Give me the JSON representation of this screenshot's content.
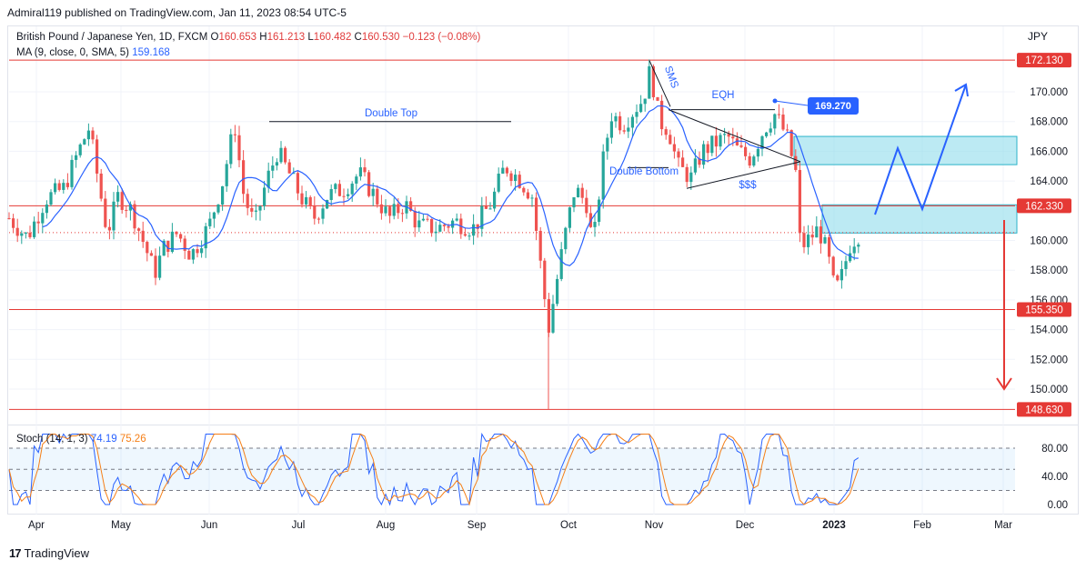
{
  "header": {
    "published": "Admiral119 published on TradingView.com, Jan 11, 2023 08:54 UTC-5"
  },
  "legend": {
    "symbol": "British Pound / Japanese Yen, 1D, FXCM",
    "open_label": "O",
    "open": "160.653",
    "high_label": "H",
    "high": "161.213",
    "low_label": "L",
    "low": "160.482",
    "close_label": "C",
    "close": "160.530",
    "change": "−0.123 (−0.08%)",
    "ma_label": "MA (9, close, 0, SMA, 5)",
    "ma_value": "159.168",
    "stoch_label": "Stoch (14, 1, 3)",
    "stoch_k": "74.19",
    "stoch_d": "75.26"
  },
  "price_axis": {
    "currency": "JPY",
    "ticks": [
      "170.000",
      "168.000",
      "166.000",
      "164.000",
      "160.000",
      "158.000",
      "156.000",
      "154.000",
      "152.000",
      "150.000"
    ],
    "levels": [
      "172.130",
      "162.330",
      "155.350",
      "148.630"
    ],
    "stoch_ticks": [
      "80.00",
      "40.00",
      "0.00"
    ]
  },
  "time_axis": {
    "labels": [
      "Apr",
      "May",
      "Jun",
      "Jul",
      "Aug",
      "Sep",
      "Oct",
      "Nov",
      "Dec",
      "2023",
      "Feb",
      "Mar"
    ]
  },
  "annotations": {
    "double_top": "Double Top",
    "double_bottom": "Double Bottom",
    "eqh": "EQH",
    "sms": "SMS",
    "sss": "$$$",
    "callout_price": "169.270"
  },
  "colors": {
    "bull": "#26a69a",
    "bear": "#ef5350",
    "ma": "#2962ff",
    "level_line": "#e53935",
    "zone": "#8fdceb",
    "stoch_k": "#2962ff",
    "stoch_d": "#f57f17"
  },
  "footer": {
    "brand": "TradingView"
  },
  "chart_data": {
    "type": "candlestick",
    "symbol": "GBPJPY",
    "timeframe": "1D",
    "ylim": [
      147.5,
      173.5
    ],
    "horizontal_levels": [
      172.13,
      162.33,
      155.35,
      148.63
    ],
    "zones": [
      [
        165.1,
        167.0
      ],
      [
        160.5,
        162.4
      ]
    ],
    "series": [
      {
        "name": "close",
        "x": [
          "Mar 20",
          "Apr",
          "Apr 20",
          "May",
          "May 15",
          "Jun",
          "Jun 15",
          "Jul",
          "Jul 15",
          "Aug",
          "Aug 15",
          "Sep",
          "Sep 15",
          "Sep 27",
          "Oct",
          "Oct 15",
          "Oct 21",
          "Nov",
          "Nov 15",
          "Dec",
          "Dec 15",
          "Dec 20",
          "2023",
          "Jan 11"
        ],
        "values": [
          161.5,
          163.0,
          167.5,
          162.0,
          157.5,
          162.0,
          167.8,
          163.8,
          165.5,
          162.5,
          161.0,
          161.5,
          167.0,
          149.5,
          160.0,
          168.5,
          171.0,
          167.5,
          166.5,
          167.0,
          168.5,
          161.0,
          157.0,
          160.53
        ]
      }
    ],
    "stochastic": {
      "k_period": 14,
      "k_smooth": 1,
      "d_smooth": 3,
      "last_k": 74.19,
      "last_d": 75.26,
      "levels": [
        80,
        20
      ]
    }
  }
}
